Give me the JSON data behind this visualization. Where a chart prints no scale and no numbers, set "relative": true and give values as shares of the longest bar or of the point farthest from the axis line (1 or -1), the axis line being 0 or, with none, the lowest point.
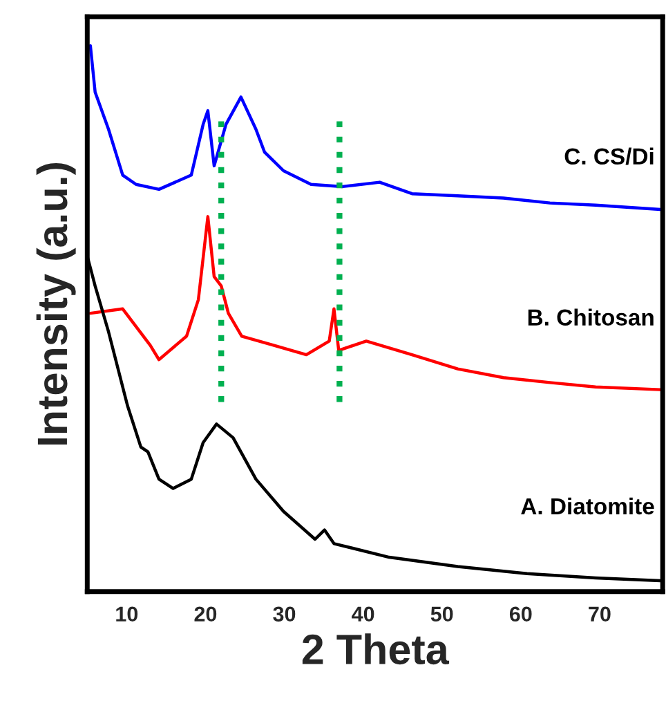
{
  "chart_data": {
    "type": "line",
    "xlabel": "2 Theta",
    "ylabel": "Intensity (a.u.)",
    "relative": true,
    "xlim": [
      5,
      78
    ],
    "xticks": [
      10,
      20,
      30,
      40,
      50,
      60,
      70
    ],
    "grid": false,
    "legend": false,
    "marker": "none",
    "line_style": "solid",
    "series": [
      {
        "name": "C. CS/Di",
        "color": "#0000ff",
        "x": [
          5.4,
          6.0,
          7.7,
          9.5,
          11.2,
          14.1,
          18.2,
          19.7,
          20.3,
          21.1,
          22.6,
          24.5,
          26.4,
          27.5,
          29.9,
          33.4,
          37.4,
          42.1,
          46.2,
          52.0,
          57.8,
          63.7,
          69.5,
          77.7
        ],
        "values": [
          1.0,
          0.915,
          0.847,
          0.763,
          0.746,
          0.737,
          0.763,
          0.856,
          0.881,
          0.78,
          0.856,
          0.906,
          0.847,
          0.805,
          0.771,
          0.746,
          0.742,
          0.75,
          0.729,
          0.725,
          0.721,
          0.712,
          0.708,
          0.7
        ]
      },
      {
        "name": "B. Chitosan",
        "color": "#ff0000",
        "x": [
          5.4,
          9.5,
          13.0,
          14.1,
          17.6,
          19.1,
          20.3,
          21.1,
          22.0,
          22.9,
          24.6,
          28.7,
          32.8,
          35.7,
          36.3,
          36.9,
          40.4,
          46.2,
          52.0,
          57.8,
          63.7,
          69.5,
          77.7
        ],
        "values": [
          0.51,
          0.518,
          0.451,
          0.425,
          0.468,
          0.535,
          0.687,
          0.577,
          0.56,
          0.51,
          0.468,
          0.451,
          0.434,
          0.459,
          0.518,
          0.442,
          0.459,
          0.434,
          0.408,
          0.392,
          0.383,
          0.375,
          0.37
        ]
      },
      {
        "name": "A. Diatomite",
        "color": "#000000",
        "x": [
          5,
          6.0,
          7.7,
          10.1,
          11.8,
          12.7,
          14.1,
          15.9,
          18.2,
          19.7,
          21.4,
          23.5,
          26.4,
          29.9,
          33.9,
          35.1,
          36.3,
          43.3,
          52.0,
          60.8,
          69.5,
          77.7
        ],
        "values": [
          0.615,
          0.56,
          0.476,
          0.341,
          0.265,
          0.256,
          0.206,
          0.189,
          0.206,
          0.273,
          0.307,
          0.282,
          0.206,
          0.147,
          0.096,
          0.113,
          0.088,
          0.063,
          0.046,
          0.033,
          0.025,
          0.02
        ]
      }
    ],
    "ref_lines": [
      {
        "axis": "x",
        "value": 22,
        "color": "#00b050",
        "line_style": "dotted"
      },
      {
        "axis": "x",
        "value": 37,
        "color": "#00b050",
        "line_style": "dotted"
      }
    ]
  }
}
